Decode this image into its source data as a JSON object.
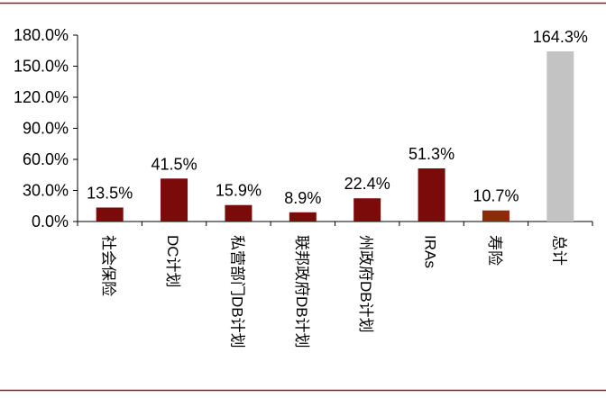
{
  "chart_data": {
    "type": "bar",
    "categories": [
      "社会保险",
      "DC计划",
      "私营部门DB计划",
      "联邦政府DB计划",
      "州政府DB计划",
      "IRAs",
      "寿险",
      "总计"
    ],
    "values": [
      13.5,
      41.5,
      15.9,
      8.9,
      22.4,
      51.3,
      10.7,
      164.3
    ],
    "data_labels": [
      "13.5%",
      "41.5%",
      "15.9%",
      "8.9%",
      "22.4%",
      "51.3%",
      "10.7%",
      "164.3%"
    ],
    "ylim": [
      0,
      180
    ],
    "yticks": [
      0,
      30,
      60,
      90,
      120,
      150,
      180
    ],
    "ytick_labels": [
      "0.0%",
      "30.0%",
      "60.0%",
      "90.0%",
      "120.0%",
      "150.0%",
      "180.0%"
    ],
    "title": "",
    "xlabel": "",
    "ylabel": "",
    "grid": false,
    "legend": "none",
    "colors": {
      "bar": "#7b0a0a",
      "bar_alt": "#8a2b0c",
      "total_bar": "#c3c3c3",
      "frame_line": "#8b1b2a",
      "axis": "#000000"
    },
    "bar_colors": [
      "#7b0a0a",
      "#7b0a0a",
      "#7b0a0a",
      "#7b0a0a",
      "#7b0a0a",
      "#7b0a0a",
      "#8a2b0c",
      "#c3c3c3"
    ]
  }
}
